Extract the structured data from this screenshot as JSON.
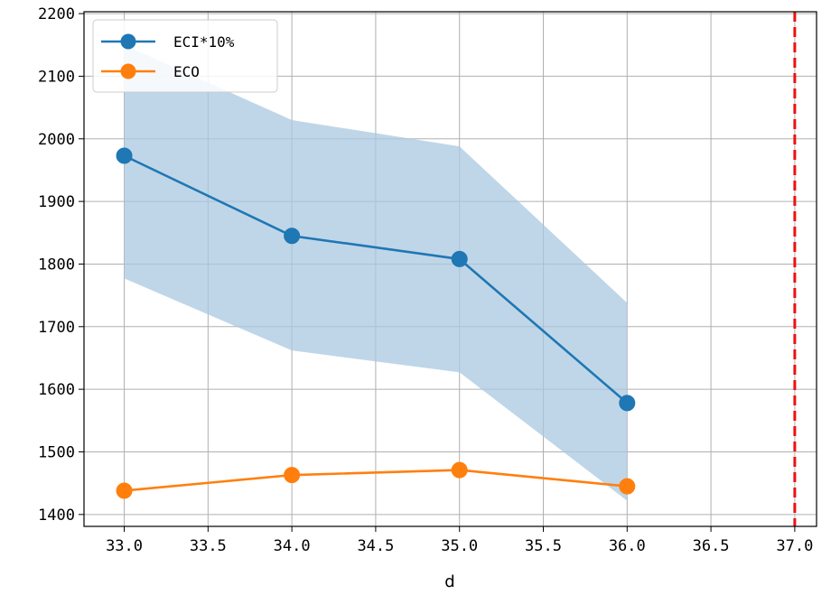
{
  "chart_data": {
    "type": "line",
    "title": "",
    "xlabel": "d",
    "ylabel": "",
    "xlim": [
      32.76,
      37.13
    ],
    "ylim": [
      1381,
      2203
    ],
    "xticks": [
      33.0,
      33.5,
      34.0,
      34.5,
      35.0,
      35.5,
      36.0,
      36.5,
      37.0
    ],
    "xtick_labels": [
      "33.0",
      "33.5",
      "34.0",
      "34.5",
      "35.0",
      "35.5",
      "36.0",
      "36.5",
      "37.0"
    ],
    "yticks": [
      1400,
      1500,
      1600,
      1700,
      1800,
      1900,
      2000,
      2100,
      2200
    ],
    "ytick_labels": [
      "1400",
      "1500",
      "1600",
      "1700",
      "1800",
      "1900",
      "2000",
      "2100",
      "2200"
    ],
    "grid": true,
    "legend_position": "top-left",
    "series": [
      {
        "name": "ECI*10%",
        "color": "#1f77b4",
        "x": [
          33.0,
          34.0,
          35.0,
          36.0
        ],
        "values": [
          1973,
          1845,
          1808,
          1578
        ],
        "band_upper": [
          2150,
          2030,
          1988,
          1738
        ],
        "band_lower": [
          1777,
          1662,
          1627,
          1422
        ],
        "band_color": "#a9c8e0"
      },
      {
        "name": "ECO",
        "color": "#ff7f0e",
        "x": [
          33.0,
          34.0,
          35.0,
          36.0
        ],
        "values": [
          1438,
          1463,
          1471,
          1445
        ]
      }
    ],
    "vline": {
      "x": 37.0,
      "color": "#ee1111",
      "style": "dashed"
    }
  }
}
